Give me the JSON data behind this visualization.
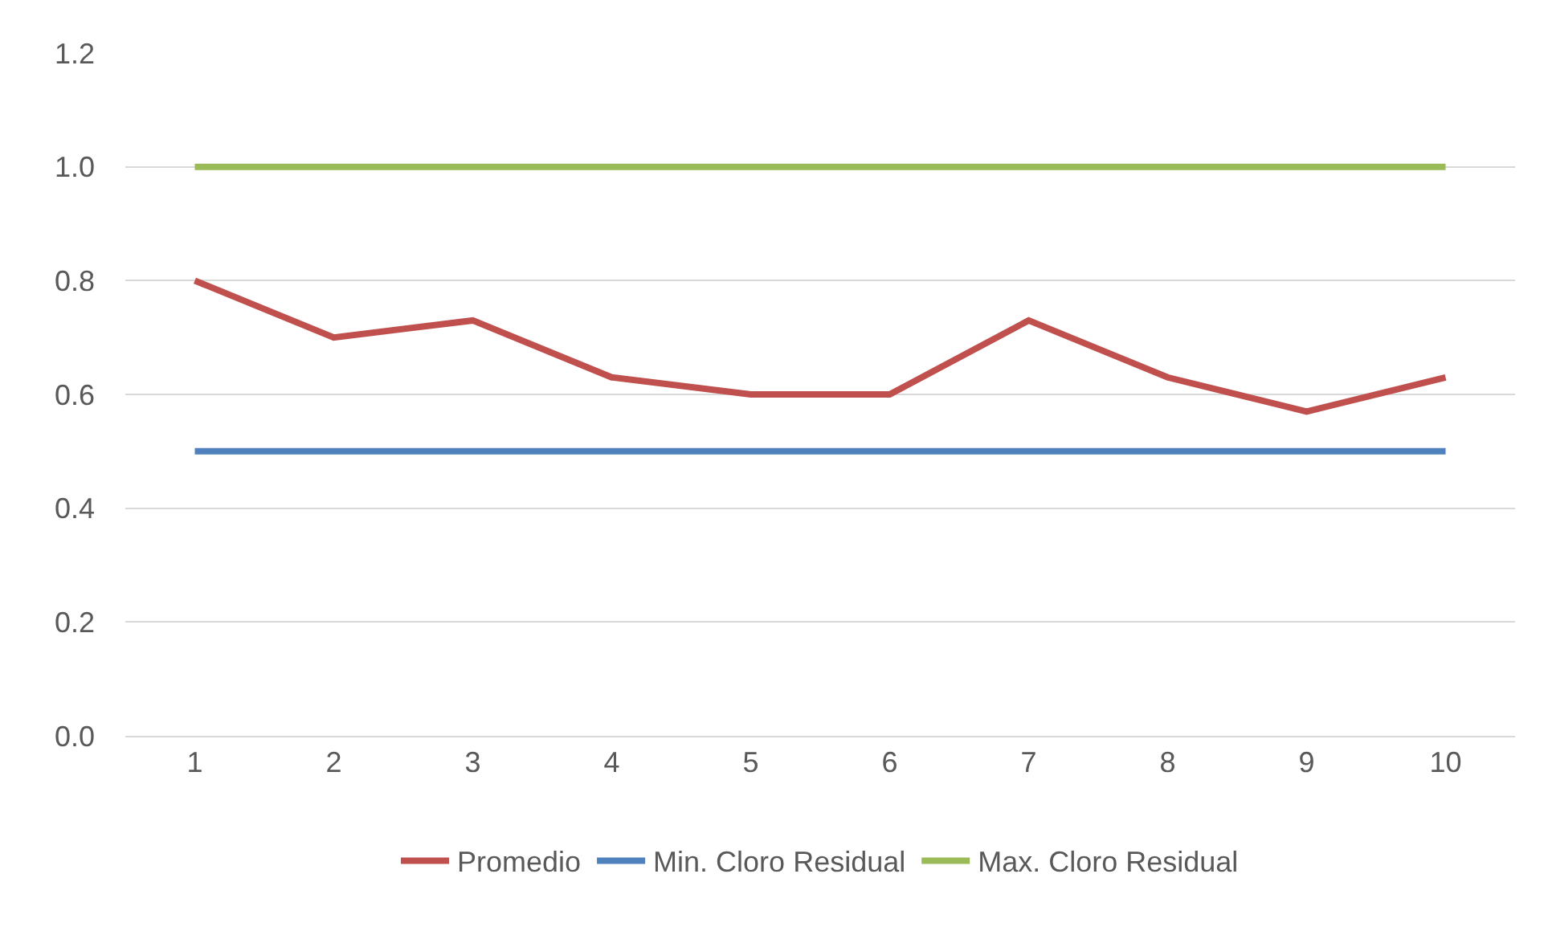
{
  "chart_data": {
    "type": "line",
    "categories": [
      "1",
      "2",
      "3",
      "4",
      "5",
      "6",
      "7",
      "8",
      "9",
      "10"
    ],
    "series": [
      {
        "name": "Promedio",
        "color": "#c0504d",
        "values": [
          0.8,
          0.7,
          0.73,
          0.63,
          0.6,
          0.6,
          0.73,
          0.63,
          0.57,
          0.63
        ]
      },
      {
        "name": "Min. Cloro Residual",
        "color": "#4f81bd",
        "values": [
          0.5,
          0.5,
          0.5,
          0.5,
          0.5,
          0.5,
          0.5,
          0.5,
          0.5,
          0.5
        ]
      },
      {
        "name": "Max. Cloro Residual",
        "color": "#9bbb59",
        "values": [
          1.0,
          1.0,
          1.0,
          1.0,
          1.0,
          1.0,
          1.0,
          1.0,
          1.0,
          1.0
        ]
      }
    ],
    "ylim": [
      0,
      1.2
    ],
    "yticks": [
      {
        "value": 0,
        "label": "0.0"
      },
      {
        "value": 0.2,
        "label": "0.2"
      },
      {
        "value": 0.4,
        "label": "0.4"
      },
      {
        "value": 0.6,
        "label": "0.6"
      },
      {
        "value": 0.8,
        "label": "0.8"
      },
      {
        "value": 1.0,
        "label": "1.0"
      },
      {
        "value": 1.2,
        "label": "1.2"
      }
    ],
    "grid": "y",
    "legend": "bottom",
    "marker": "none",
    "line_style": "solid"
  }
}
